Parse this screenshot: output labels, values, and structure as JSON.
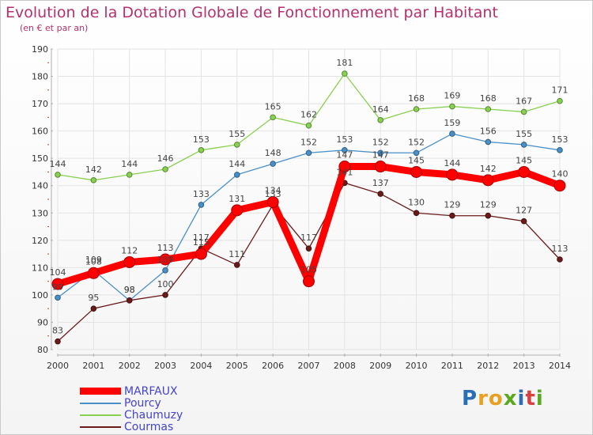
{
  "title": "Evolution de la Dotation Globale de Fonctionnement par Habitant",
  "subtitle": "(en € et par an)",
  "logo": {
    "text": "Proxiti",
    "letters": [
      "P",
      "r",
      "o",
      "x",
      "i",
      "t",
      "i"
    ],
    "colors": [
      "#2a6fb5",
      "#e8a020",
      "#e8a020",
      "#5aa820",
      "#2a6fb5",
      "#d94040",
      "#5aa820"
    ]
  },
  "chart_data": {
    "type": "line",
    "title": "Evolution de la Dotation Globale de Fonctionnement par Habitant",
    "subtitle": "(en € et par an)",
    "x": [
      2000,
      2001,
      2002,
      2003,
      2004,
      2005,
      2006,
      2007,
      2008,
      2009,
      2010,
      2011,
      2012,
      2013,
      2014
    ],
    "ylim": [
      80,
      190
    ],
    "yticks": [
      80,
      90,
      100,
      110,
      120,
      130,
      140,
      150,
      160,
      170,
      180,
      190
    ],
    "grid": true,
    "legend_position": "bottom-left",
    "series": [
      {
        "name": "MARFAUX",
        "color": "#ff0000",
        "values": [
          104,
          108,
          112,
          113,
          115,
          131,
          134,
          105,
          147,
          147,
          145,
          144,
          142,
          145,
          140
        ]
      },
      {
        "name": "Pourcy",
        "color": "#4a90c8",
        "values": [
          99,
          109,
          98,
          109,
          133,
          144,
          148,
          152,
          153,
          152,
          152,
          159,
          156,
          155,
          153
        ]
      },
      {
        "name": "Chaumuzy",
        "color": "#88d050",
        "values": [
          144,
          142,
          144,
          146,
          153,
          155,
          165,
          162,
          181,
          164,
          168,
          169,
          168,
          167,
          171
        ]
      },
      {
        "name": "Courmas",
        "color": "#6b1a1a",
        "values": [
          83,
          95,
          98,
          100,
          117,
          111,
          133,
          117,
          141,
          137,
          130,
          129,
          129,
          127,
          113
        ]
      }
    ]
  }
}
